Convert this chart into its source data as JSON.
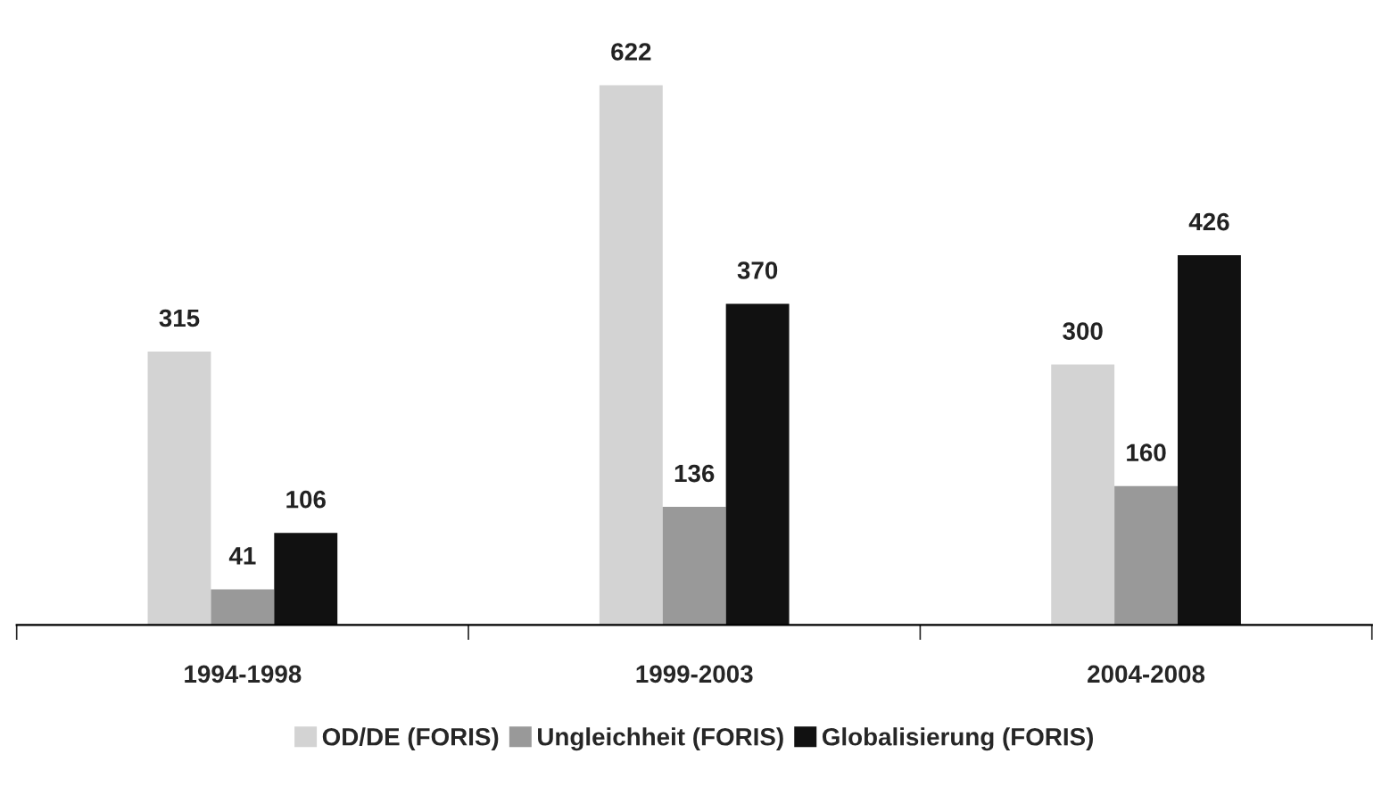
{
  "chart_data": {
    "type": "bar",
    "categories": [
      "1994-1998",
      "1999-2003",
      "2004-2008"
    ],
    "series": [
      {
        "name": "OD/DE (FORIS)",
        "color": "#d3d3d3",
        "values": [
          315,
          622,
          300
        ]
      },
      {
        "name": "Ungleichheit (FORIS)",
        "color": "#999999",
        "values": [
          41,
          136,
          160
        ]
      },
      {
        "name": "Globalisierung (FORIS)",
        "color": "#111111",
        "values": [
          106,
          370,
          426
        ]
      }
    ],
    "data_labels": true,
    "legend": "bottom",
    "grid": false
  }
}
